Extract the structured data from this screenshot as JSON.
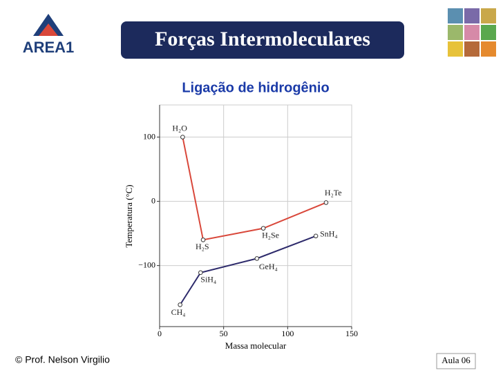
{
  "slide": {
    "logo": "AREA1",
    "title": "Forças Intermoleculares",
    "subtitle": "Ligação de hidrogênio",
    "footer": "© Prof. Nelson Virgilio",
    "lesson": "Aula 06"
  },
  "chart_data": {
    "type": "line",
    "x_label": "Massa molecular",
    "y_label": "Temperatura (°C)",
    "series": [
      {
        "color": "#d9473a",
        "x": [
          18,
          34,
          81,
          130
        ],
        "values": [
          100,
          -60,
          -42,
          -2
        ],
        "labels": [
          "H₂O",
          "H₂S",
          "H₂Se",
          "H₂Te"
        ]
      },
      {
        "color": "#2d2a6b",
        "x": [
          16,
          32,
          76,
          122
        ],
        "values": [
          -161,
          -111,
          -89,
          -54
        ],
        "labels": [
          "CH₄",
          "SiH₄",
          "GeH₄",
          "SnH₄"
        ]
      }
    ],
    "xlim": [
      0,
      150
    ],
    "xticks": [
      0,
      50,
      100,
      150
    ],
    "ylim": [
      -195,
      150
    ],
    "yticks": [
      {
        "value": -100,
        "label": "−100"
      },
      0,
      100
    ],
    "grid": true
  }
}
